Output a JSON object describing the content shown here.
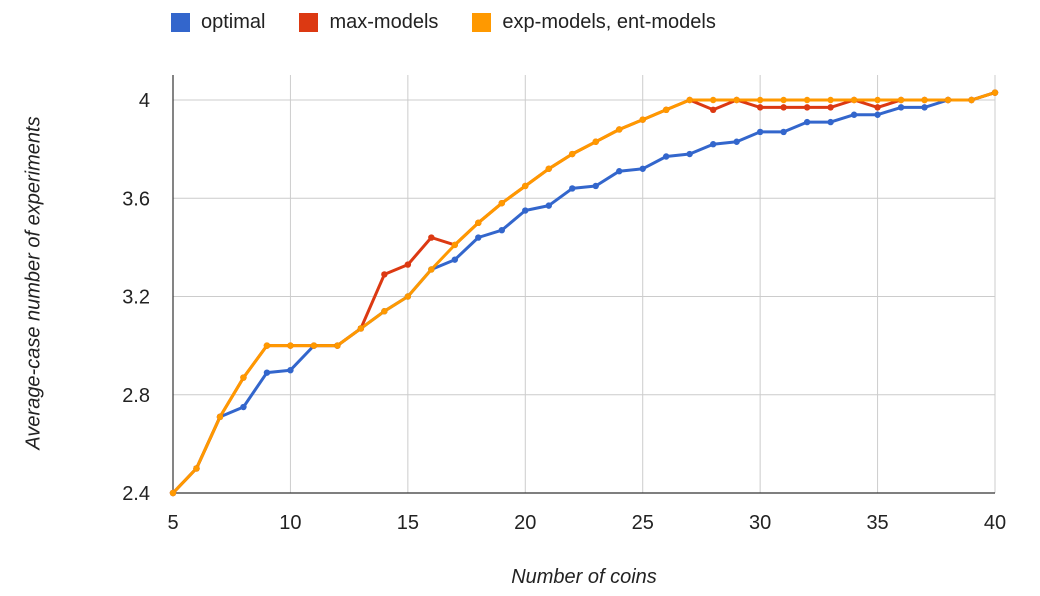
{
  "chart_data": {
    "type": "line",
    "xlabel": "Number of coins",
    "ylabel": "Average-case number of experiments",
    "xlim": [
      5,
      40
    ],
    "ylim": [
      2.4,
      4.1
    ],
    "xticks": [
      5,
      10,
      15,
      20,
      25,
      30,
      35,
      40
    ],
    "yticks": [
      2.4,
      2.8,
      3.2,
      3.6,
      4.0
    ],
    "ytick_labels": [
      "2.4",
      "2.8",
      "3.2",
      "3.6",
      "4"
    ],
    "grid": true,
    "legend_position": "top",
    "x": [
      5,
      6,
      7,
      8,
      9,
      10,
      11,
      12,
      13,
      14,
      15,
      16,
      17,
      18,
      19,
      20,
      21,
      22,
      23,
      24,
      25,
      26,
      27,
      28,
      29,
      30,
      31,
      32,
      33,
      34,
      35,
      36,
      37,
      38,
      39,
      40
    ],
    "series": [
      {
        "name": "optimal",
        "color": "#3366cc",
        "values": [
          2.4,
          2.5,
          2.71,
          2.75,
          2.89,
          2.9,
          3.0,
          3.0,
          3.07,
          3.14,
          3.2,
          3.31,
          3.35,
          3.44,
          3.47,
          3.55,
          3.57,
          3.64,
          3.65,
          3.71,
          3.72,
          3.77,
          3.78,
          3.82,
          3.83,
          3.87,
          3.87,
          3.91,
          3.91,
          3.94,
          3.94,
          3.97,
          3.97,
          4.0,
          4.0,
          4.03
        ]
      },
      {
        "name": "max-models",
        "color": "#dc3912",
        "values": [
          2.4,
          2.5,
          2.71,
          2.87,
          3.0,
          3.0,
          3.0,
          3.0,
          3.07,
          3.29,
          3.33,
          3.44,
          3.41,
          3.5,
          3.58,
          3.65,
          3.72,
          3.78,
          3.83,
          3.88,
          3.92,
          3.96,
          4.0,
          3.96,
          4.0,
          3.97,
          3.97,
          3.97,
          3.97,
          4.0,
          3.97,
          4.0,
          4.0,
          4.0,
          4.0,
          4.03
        ]
      },
      {
        "name": "exp-models, ent-models",
        "color": "#ff9900",
        "values": [
          2.4,
          2.5,
          2.71,
          2.87,
          3.0,
          3.0,
          3.0,
          3.0,
          3.07,
          3.14,
          3.2,
          3.31,
          3.41,
          3.5,
          3.58,
          3.65,
          3.72,
          3.78,
          3.83,
          3.88,
          3.92,
          3.96,
          4.0,
          4.0,
          4.0,
          4.0,
          4.0,
          4.0,
          4.0,
          4.0,
          4.0,
          4.0,
          4.0,
          4.0,
          4.0,
          4.03
        ]
      }
    ]
  }
}
